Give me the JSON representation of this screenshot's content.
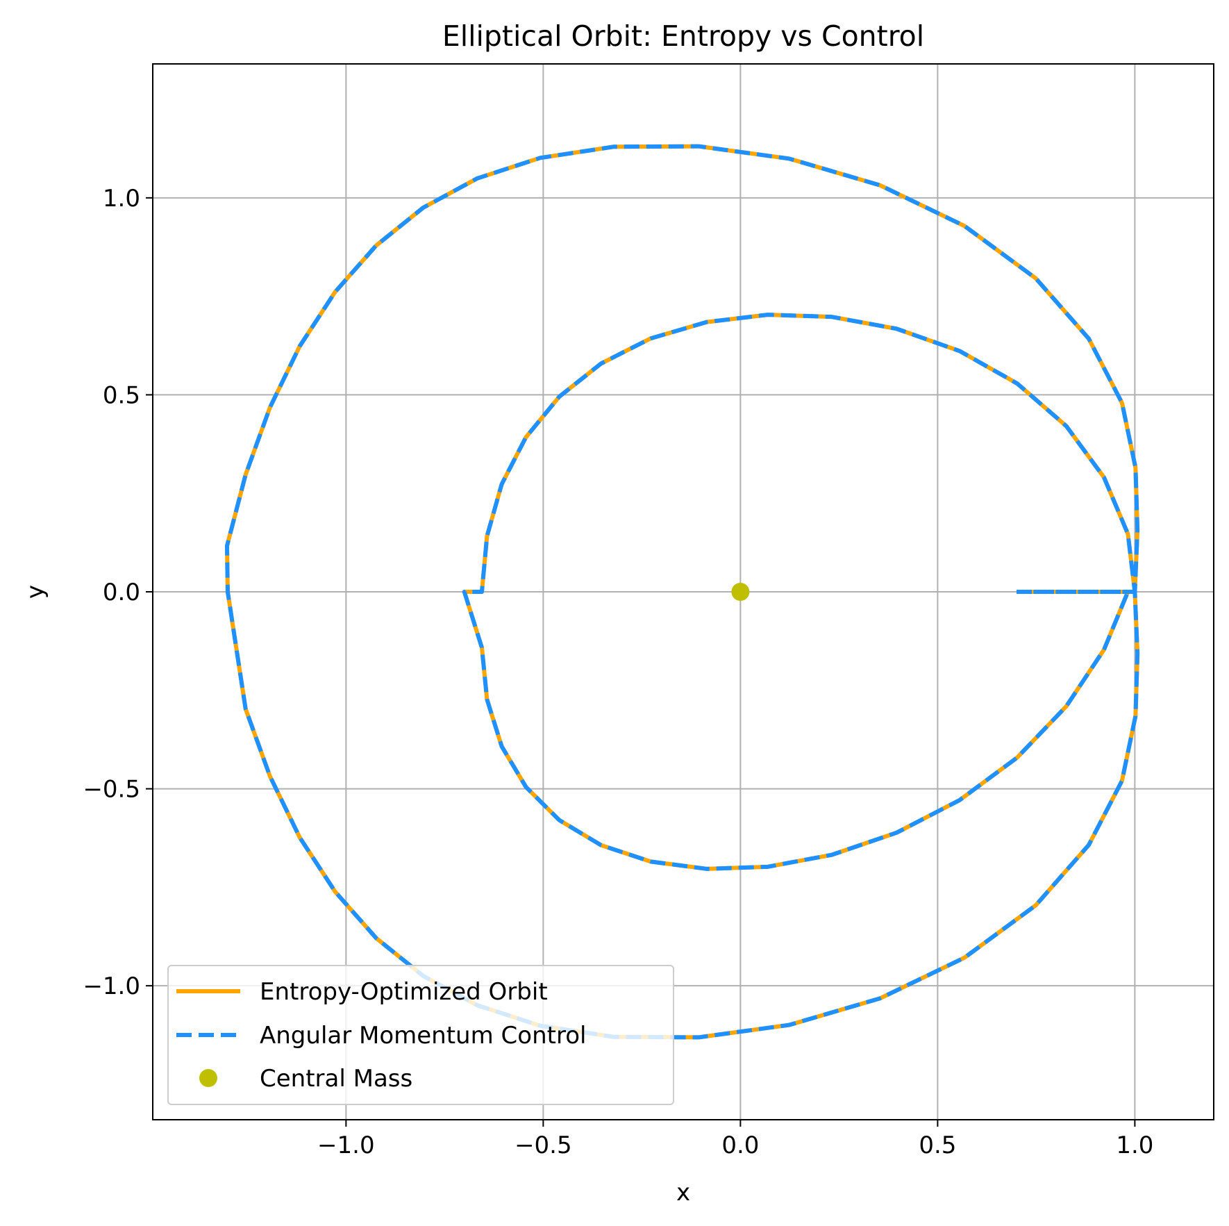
{
  "chart_data": {
    "type": "line",
    "title": "Elliptical Orbit: Entropy vs Control",
    "xlabel": "x",
    "ylabel": "y",
    "xlim": [
      -1.49,
      1.2
    ],
    "ylim": [
      -1.34,
      1.34
    ],
    "xticks": [
      -1.0,
      -0.5,
      0.0,
      0.5,
      1.0
    ],
    "xtick_labels": [
      "−1.0",
      "−0.5",
      "0.0",
      "0.5",
      "1.0"
    ],
    "yticks": [
      -1.0,
      -0.5,
      0.0,
      0.5,
      1.0
    ],
    "ytick_labels": [
      "−1.0",
      "−0.5",
      "0.0",
      "0.5",
      "1.0"
    ],
    "grid": true,
    "legend_position": "lower-left",
    "series": [
      {
        "name": "Entropy-Optimized Orbit",
        "style": "solid",
        "color": "#FFA500",
        "x": [
          0.7,
          1.0,
          1.0066,
          1.0017,
          0.9674,
          0.8831,
          0.7487,
          0.568,
          0.3543,
          0.1239,
          -0.106,
          -0.3205,
          -0.5077,
          -0.6673,
          -0.8044,
          -0.9236,
          -1.0274,
          -1.1173,
          -1.193,
          -1.2546,
          -1.3017,
          -1.3,
          -1.2546,
          -1.193,
          -1.1173,
          -1.0274,
          -0.9236,
          -0.8044,
          -0.6673,
          -0.5077,
          -0.3205,
          -0.106,
          0.1239,
          0.3543,
          0.568,
          0.7487,
          0.8831,
          0.9674,
          1.0017,
          1.0066,
          1.0,
          0.9824,
          0.9217,
          0.8262,
          0.7017,
          0.5556,
          0.3963,
          0.2318,
          0.0693,
          -0.0855,
          -0.2275,
          -0.3531,
          -0.4592,
          -0.5438,
          -0.6052,
          -0.6425,
          -0.6556,
          -0.7,
          -0.6556,
          -0.6425,
          -0.6052,
          -0.5438,
          -0.4592,
          -0.3531,
          -0.2275,
          -0.0855,
          0.0693,
          0.2318,
          0.3963,
          0.5556,
          0.7017,
          0.8262,
          0.9217,
          0.9824,
          1.0,
          0.7
        ],
        "y": [
          0.0,
          0.0,
          0.1558,
          0.3153,
          0.4796,
          0.6427,
          0.7958,
          0.9287,
          1.0318,
          1.0994,
          1.1309,
          1.1298,
          1.1014,
          1.0494,
          0.975,
          0.8789,
          0.7614,
          0.6236,
          0.4677,
          0.2972,
          0.1168,
          0.0,
          -0.2972,
          -0.4677,
          -0.6236,
          -0.7614,
          -0.8789,
          -0.975,
          -1.0494,
          -1.1014,
          -1.1298,
          -1.1309,
          -1.0994,
          -1.0318,
          -0.9287,
          -0.7958,
          -0.6427,
          -0.4796,
          -0.3153,
          -0.1558,
          0.0,
          0.1469,
          0.2906,
          0.4207,
          0.5288,
          0.6113,
          0.6676,
          0.6979,
          0.7033,
          0.6847,
          0.6432,
          0.5796,
          0.4954,
          0.3924,
          0.2733,
          0.1415,
          0.0,
          0.0,
          -0.1415,
          -0.2733,
          -0.3924,
          -0.4954,
          -0.5796,
          -0.6432,
          -0.6847,
          -0.7033,
          -0.6979,
          -0.6676,
          -0.6113,
          -0.5288,
          -0.4207,
          -0.2906,
          -0.1469,
          0.0,
          0.0,
          0.0
        ]
      },
      {
        "name": "Angular Momentum Control",
        "style": "dashed",
        "color": "#1E90FF",
        "x": [
          0.7,
          1.0,
          1.0066,
          1.0017,
          0.9674,
          0.8831,
          0.7487,
          0.568,
          0.3543,
          0.1239,
          -0.106,
          -0.3205,
          -0.5077,
          -0.6673,
          -0.8044,
          -0.9236,
          -1.0274,
          -1.1173,
          -1.193,
          -1.2546,
          -1.3017,
          -1.3,
          -1.2546,
          -1.193,
          -1.1173,
          -1.0274,
          -0.9236,
          -0.8044,
          -0.6673,
          -0.5077,
          -0.3205,
          -0.106,
          0.1239,
          0.3543,
          0.568,
          0.7487,
          0.8831,
          0.9674,
          1.0017,
          1.0066,
          1.0,
          0.9824,
          0.9217,
          0.8262,
          0.7017,
          0.5556,
          0.3963,
          0.2318,
          0.0693,
          -0.0855,
          -0.2275,
          -0.3531,
          -0.4592,
          -0.5438,
          -0.6052,
          -0.6425,
          -0.6556,
          -0.7,
          -0.6556,
          -0.6425,
          -0.6052,
          -0.5438,
          -0.4592,
          -0.3531,
          -0.2275,
          -0.0855,
          0.0693,
          0.2318,
          0.3963,
          0.5556,
          0.7017,
          0.8262,
          0.9217,
          0.9824,
          1.0,
          0.7
        ],
        "y": [
          0.0,
          0.0,
          0.1558,
          0.3153,
          0.4796,
          0.6427,
          0.7958,
          0.9287,
          1.0318,
          1.0994,
          1.1309,
          1.1298,
          1.1014,
          1.0494,
          0.975,
          0.8789,
          0.7614,
          0.6236,
          0.4677,
          0.2972,
          0.1168,
          0.0,
          -0.2972,
          -0.4677,
          -0.6236,
          -0.7614,
          -0.8789,
          -0.975,
          -1.0494,
          -1.1014,
          -1.1298,
          -1.1309,
          -1.0994,
          -1.0318,
          -0.9287,
          -0.7958,
          -0.6427,
          -0.4796,
          -0.3153,
          -0.1558,
          0.0,
          0.1469,
          0.2906,
          0.4207,
          0.5288,
          0.6113,
          0.6676,
          0.6979,
          0.7033,
          0.6847,
          0.6432,
          0.5796,
          0.4954,
          0.3924,
          0.2733,
          0.1415,
          0.0,
          0.0,
          -0.1415,
          -0.2733,
          -0.3924,
          -0.4954,
          -0.5796,
          -0.6432,
          -0.6847,
          -0.7033,
          -0.6979,
          -0.6676,
          -0.6113,
          -0.5288,
          -0.4207,
          -0.2906,
          -0.1469,
          0.0,
          0.0,
          0.0
        ]
      },
      {
        "name": "Central Mass",
        "style": "marker",
        "color": "#BFBF00",
        "x": [
          0.0
        ],
        "y": [
          0.0
        ]
      }
    ]
  }
}
